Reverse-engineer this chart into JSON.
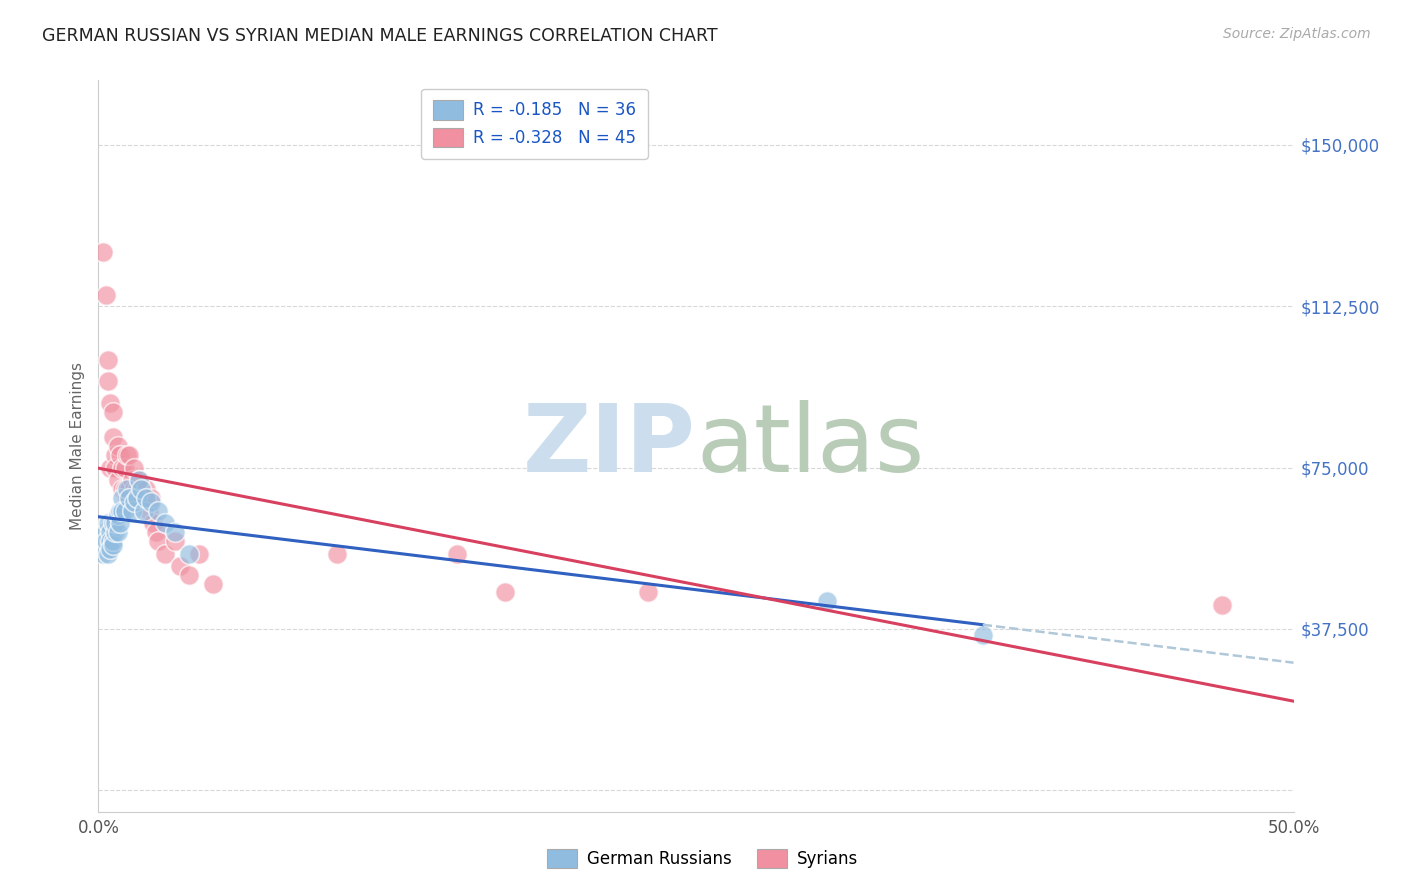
{
  "title": "GERMAN RUSSIAN VS SYRIAN MEDIAN MALE EARNINGS CORRELATION CHART",
  "source": "Source: ZipAtlas.com",
  "ylabel": "Median Male Earnings",
  "yticks": [
    0,
    37500,
    75000,
    112500,
    150000
  ],
  "ytick_labels": [
    "",
    "$37,500",
    "$75,000",
    "$112,500",
    "$150,000"
  ],
  "xmin": 0.0,
  "xmax": 0.5,
  "ymin": -5000,
  "ymax": 165000,
  "blue_scatter_color": "#90bce0",
  "pink_scatter_color": "#f090a0",
  "blue_line_color": "#3060c0",
  "pink_line_color": "#d84060",
  "dashed_line_color": "#b0c8d8",
  "grid_color": "#d8d8d8",
  "background_color": "#ffffff",
  "title_color": "#222222",
  "ytick_color": "#4472c4",
  "legend_text_color": "#1a56c4",
  "legend_bottom": [
    "German Russians",
    "Syrians"
  ],
  "blue_x": [
    0.002,
    0.003,
    0.003,
    0.004,
    0.004,
    0.005,
    0.005,
    0.005,
    0.006,
    0.006,
    0.006,
    0.007,
    0.007,
    0.008,
    0.008,
    0.009,
    0.009,
    0.01,
    0.01,
    0.011,
    0.012,
    0.013,
    0.014,
    0.015,
    0.016,
    0.017,
    0.018,
    0.019,
    0.02,
    0.022,
    0.025,
    0.028,
    0.032,
    0.038,
    0.305,
    0.37
  ],
  "blue_y": [
    55000,
    60000,
    58000,
    62000,
    55000,
    60000,
    58000,
    56000,
    62000,
    58000,
    57000,
    60000,
    62000,
    60000,
    64000,
    65000,
    62000,
    68000,
    65000,
    65000,
    70000,
    68000,
    65000,
    67000,
    68000,
    72000,
    70000,
    65000,
    68000,
    67000,
    65000,
    62000,
    60000,
    55000,
    44000,
    36000
  ],
  "pink_x": [
    0.002,
    0.003,
    0.004,
    0.004,
    0.005,
    0.005,
    0.006,
    0.006,
    0.007,
    0.007,
    0.008,
    0.008,
    0.009,
    0.01,
    0.01,
    0.011,
    0.011,
    0.012,
    0.012,
    0.013,
    0.013,
    0.014,
    0.015,
    0.015,
    0.016,
    0.017,
    0.018,
    0.019,
    0.02,
    0.021,
    0.022,
    0.023,
    0.024,
    0.025,
    0.028,
    0.032,
    0.034,
    0.038,
    0.042,
    0.048,
    0.1,
    0.15,
    0.17,
    0.23,
    0.47
  ],
  "pink_y": [
    125000,
    115000,
    100000,
    95000,
    90000,
    75000,
    82000,
    88000,
    78000,
    75000,
    80000,
    72000,
    78000,
    75000,
    70000,
    75000,
    70000,
    78000,
    68000,
    78000,
    70000,
    72000,
    70000,
    75000,
    70000,
    72000,
    68000,
    68000,
    70000,
    65000,
    68000,
    62000,
    60000,
    58000,
    55000,
    58000,
    52000,
    50000,
    55000,
    48000,
    55000,
    55000,
    46000,
    46000,
    43000
  ],
  "watermark_zip_color": "#ccdded",
  "watermark_atlas_color": "#b8ccb8"
}
